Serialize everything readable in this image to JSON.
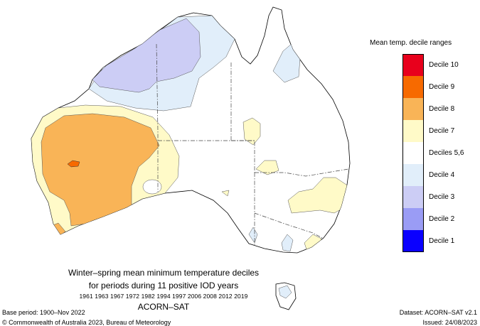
{
  "legend": {
    "title": "Mean temp. decile ranges",
    "items": [
      {
        "label": "Decile 10",
        "color": "#e8001c"
      },
      {
        "label": "Decile 9",
        "color": "#f76a00"
      },
      {
        "label": "Decile 8",
        "color": "#f9b457"
      },
      {
        "label": "Decile 7",
        "color": "#fffac8"
      },
      {
        "label": "Deciles 5,6",
        "color": "#ffffff"
      },
      {
        "label": "Decile 4",
        "color": "#e1eefa"
      },
      {
        "label": "Decile 3",
        "color": "#cccdf5"
      },
      {
        "label": "Decile 2",
        "color": "#9a9cf5"
      },
      {
        "label": "Decile 1",
        "color": "#0a00ff"
      }
    ]
  },
  "caption": {
    "title": "Winter–spring mean minimum temperature deciles",
    "subtitle": "for periods during 11 positive IOD years",
    "years": "1961 1963 1967 1972 1982 1994 1997 2006 2008 2012 2019",
    "dataset": "ACORN–SAT"
  },
  "footer": {
    "base_period": "Base period: 1900–Nov 2022",
    "copyright": "© Commonwealth of Australia 2023, Bureau of Meteorology",
    "dataset": "Dataset: ACORN–SAT v2.1",
    "issued": "Issued: 24/08/2023"
  }
}
